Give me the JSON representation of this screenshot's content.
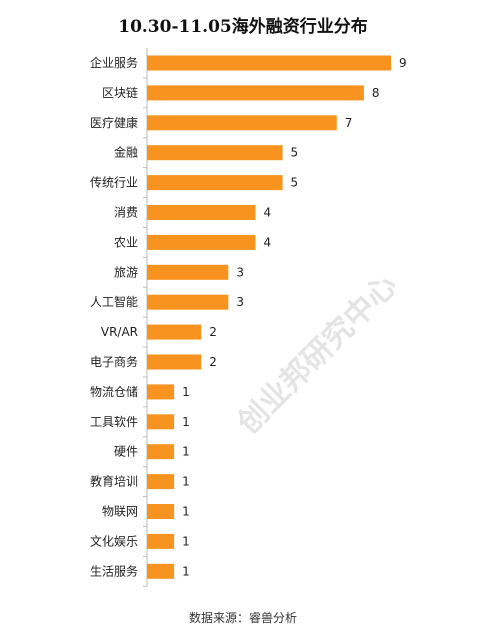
{
  "chart_data": {
    "type": "bar",
    "orientation": "horizontal",
    "title": "10.30-11.05海外融资行业分布",
    "categories": [
      "企业服务",
      "区块链",
      "医疗健康",
      "金融",
      "传统行业",
      "消费",
      "农业",
      "旅游",
      "人工智能",
      "VR/AR",
      "电子商务",
      "物流仓储",
      "工具软件",
      "硬件",
      "教育培训",
      "物联网",
      "文化娱乐",
      "生活服务"
    ],
    "values": [
      9,
      8,
      7,
      5,
      5,
      4,
      4,
      3,
      3,
      2,
      2,
      1,
      1,
      1,
      1,
      1,
      1,
      1
    ],
    "xlim": [
      0,
      9
    ],
    "grid": false,
    "legend": "none"
  },
  "colors": {
    "bar": "#f7931e",
    "axis": "#bbbbbb"
  },
  "watermark": "创业邦研究中心",
  "source": "数据来源：睿兽分析"
}
